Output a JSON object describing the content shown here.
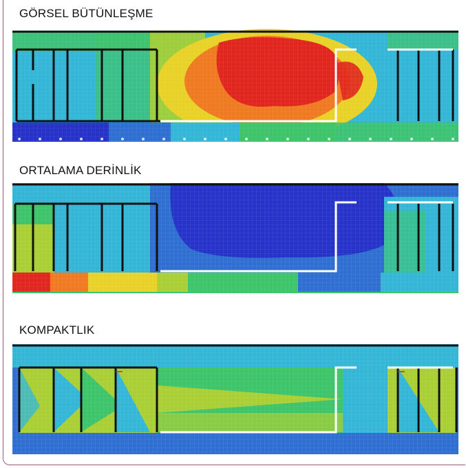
{
  "panels": [
    {
      "title": "GÖRSEL BÜTÜNLEŞME",
      "scale": "red-high-center"
    },
    {
      "title": "ORTALAMA DERİNLİK",
      "scale": "blue-low-center"
    },
    {
      "title": "KOMPAKTLIK",
      "scale": "green-yellow-mixed"
    }
  ],
  "colors": {
    "frame": "#9b5a86",
    "red": "#e0261e",
    "orange": "#f07a22",
    "yellow": "#e8d228",
    "yellowgreen": "#a9cf35",
    "green": "#3ec46a",
    "teal": "#2fbfb4",
    "cyan": "#34b6d6",
    "blue": "#2e6fd1",
    "navy": "#2533c8"
  }
}
